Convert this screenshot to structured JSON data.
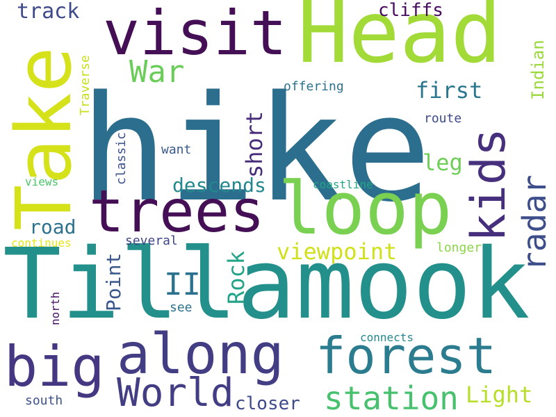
{
  "words": [
    {
      "text": "hike",
      "color": "#2c6e8e"
    },
    {
      "text": "Tillamook",
      "color": "#23908b"
    },
    {
      "text": "Head",
      "color": "#a2da37"
    },
    {
      "text": "Take",
      "color": "#d5e21a"
    },
    {
      "text": "loop",
      "color": "#7ad151"
    },
    {
      "text": "visit",
      "color": "#440f55"
    },
    {
      "text": "trees",
      "color": "#440f55"
    },
    {
      "text": "big",
      "color": "#453781"
    },
    {
      "text": "along",
      "color": "#433d84"
    },
    {
      "text": "forest",
      "color": "#2b7c8e"
    },
    {
      "text": "kids",
      "color": "#462f7c"
    },
    {
      "text": "World",
      "color": "#433d84"
    },
    {
      "text": "station",
      "color": "#47c16e"
    },
    {
      "text": "radar",
      "color": "#3d4e8a"
    },
    {
      "text": "War",
      "color": "#6bcd59"
    },
    {
      "text": "viewpoint",
      "color": "#d0e11c"
    },
    {
      "text": "II",
      "color": "#2c718e"
    },
    {
      "text": "Light",
      "color": "#b8de29"
    },
    {
      "text": "descends",
      "color": "#23888e"
    },
    {
      "text": "Rock",
      "color": "#20a386"
    },
    {
      "text": "Point",
      "color": "#39568c"
    },
    {
      "text": "road",
      "color": "#2c728e"
    },
    {
      "text": "first",
      "color": "#2a768e"
    },
    {
      "text": "track",
      "color": "#3e4a89"
    },
    {
      "text": "short",
      "color": "#472c7a"
    },
    {
      "text": "leg",
      "color": "#6ece58"
    },
    {
      "text": "cliffs",
      "color": "#460b5e"
    },
    {
      "text": "closer",
      "color": "#3e4a89"
    },
    {
      "text": "Indian",
      "color": "#9bd93c"
    },
    {
      "text": "offering",
      "color": "#2c728e"
    },
    {
      "text": "Traverse",
      "color": "#c8e020"
    },
    {
      "text": "classic",
      "color": "#3b518b"
    },
    {
      "text": "want",
      "color": "#38598c"
    },
    {
      "text": "route",
      "color": "#3e4989"
    },
    {
      "text": "views",
      "color": "#4ec36b"
    },
    {
      "text": "coastline",
      "color": "#22a785"
    },
    {
      "text": "continues",
      "color": "#e7e419"
    },
    {
      "text": "several",
      "color": "#404588"
    },
    {
      "text": "longer",
      "color": "#8bd646"
    },
    {
      "text": "north",
      "color": "#471063"
    },
    {
      "text": "see",
      "color": "#2c728e"
    },
    {
      "text": "connects",
      "color": "#23888e"
    },
    {
      "text": "south",
      "color": "#3b528b"
    }
  ]
}
